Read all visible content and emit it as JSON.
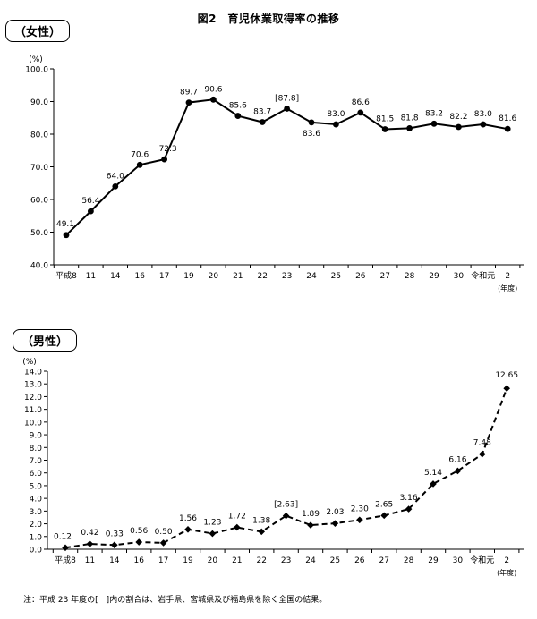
{
  "figure_title": "図2　育児休業取得率の推移",
  "note": "注：平成 23 年度の[　]内の割合は、岩手県、宮城県及び福島県を除く全国の結果。",
  "chart_data": [
    {
      "type": "line",
      "panel_label": "（女性）",
      "unit_label": "(%)",
      "year_unit_label": "(年度)",
      "categories": [
        "平成8",
        "11",
        "14",
        "16",
        "17",
        "19",
        "20",
        "21",
        "22",
        "23",
        "24",
        "25",
        "26",
        "27",
        "28",
        "29",
        "30",
        "令和元",
        "2"
      ],
      "values": [
        49.1,
        56.4,
        64.0,
        70.6,
        72.3,
        89.7,
        90.6,
        85.6,
        83.7,
        87.8,
        83.6,
        83.0,
        86.6,
        81.5,
        81.8,
        83.2,
        82.2,
        83.0,
        81.6
      ],
      "value_labels": [
        "49.1",
        "56.4",
        "64.0",
        "70.6",
        "72.3",
        "89.7",
        "90.6",
        "85.6",
        "83.7",
        "[87.8]",
        "83.6",
        "83.0",
        "86.6",
        "81.5",
        "81.8",
        "83.2",
        "82.2",
        "83.0",
        "81.6"
      ],
      "ylim": [
        40,
        100
      ],
      "y_ticks": [
        "40.0",
        "50.0",
        "60.0",
        "70.0",
        "80.0",
        "90.0",
        "100.0"
      ],
      "line_style": "solid",
      "marker": "circle",
      "grid": false,
      "color": "#000000"
    },
    {
      "type": "line",
      "panel_label": "（男性）",
      "unit_label": "(%)",
      "year_unit_label": "(年度)",
      "categories": [
        "平成8",
        "11",
        "14",
        "16",
        "17",
        "19",
        "20",
        "21",
        "22",
        "23",
        "24",
        "25",
        "26",
        "27",
        "28",
        "29",
        "30",
        "令和元",
        "2"
      ],
      "values": [
        0.12,
        0.42,
        0.33,
        0.56,
        0.5,
        1.56,
        1.23,
        1.72,
        1.38,
        2.63,
        1.89,
        2.03,
        2.3,
        2.65,
        3.16,
        5.14,
        6.16,
        7.48,
        12.65
      ],
      "value_labels": [
        "0.12",
        "0.42",
        "0.33",
        "0.56",
        "0.50",
        "1.56",
        "1.23",
        "1.72",
        "1.38",
        "[2.63]",
        "1.89",
        "2.03",
        "2.30",
        "2.65",
        "3.16",
        "5.14",
        "6.16",
        "7.48",
        "12.65"
      ],
      "ylim": [
        0,
        14
      ],
      "y_ticks": [
        "0.0",
        "1.0",
        "2.0",
        "3.0",
        "4.0",
        "5.0",
        "6.0",
        "7.0",
        "8.0",
        "9.0",
        "10.0",
        "11.0",
        "12.0",
        "13.0",
        "14.0"
      ],
      "line_style": "dashed",
      "marker": "diamond",
      "grid": false,
      "color": "#000000"
    }
  ]
}
